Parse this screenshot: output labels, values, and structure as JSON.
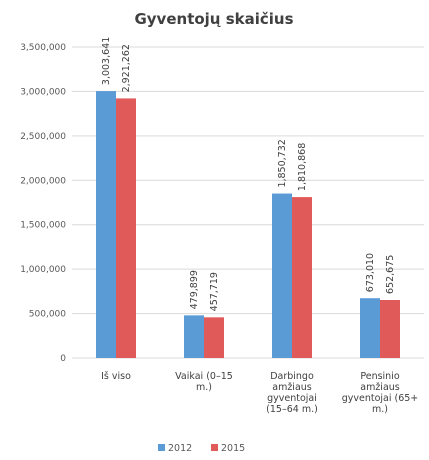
{
  "chart_data": {
    "type": "bar",
    "title": "Gyventojų skaičius",
    "categories": [
      [
        "Iš viso"
      ],
      [
        "Vaikai (0–15",
        "m.)"
      ],
      [
        "Darbingo",
        "amžiaus",
        "gyventojai",
        "(15–64 m.)"
      ],
      [
        "Pensinio",
        "amžiaus",
        "gyventojai (65+",
        "m.)"
      ]
    ],
    "series": [
      {
        "name": "2012",
        "color": "#5b9bd5",
        "values": [
          3003641,
          479899,
          1850732,
          673010
        ],
        "labels": [
          "3,003,641",
          "479,899",
          "1,850,732",
          "673,010"
        ]
      },
      {
        "name": "2015",
        "color": "#e05a5a",
        "values": [
          2921262,
          457719,
          1810868,
          652675
        ],
        "labels": [
          "2,921,262",
          "457,719",
          "1,810,868",
          "652,675"
        ]
      }
    ],
    "ylim": [
      0,
      3500000
    ],
    "yticks": [
      0,
      500000,
      1000000,
      1500000,
      2000000,
      2500000,
      3000000,
      3500000
    ],
    "ytick_labels": [
      "0",
      "500,000",
      "1,000,000",
      "1,500,000",
      "2,000,000",
      "2,500,000",
      "3,000,000",
      "3,500,000"
    ],
    "grid": true,
    "legend_position": "bottom"
  }
}
